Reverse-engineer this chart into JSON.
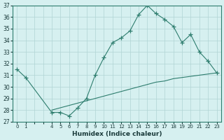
{
  "xlabel": "Humidex (Indice chaleur)",
  "upper_x": [
    0,
    1,
    4,
    5,
    6,
    7,
    8,
    9,
    10,
    11,
    12,
    13,
    14,
    15,
    16,
    17,
    18,
    19,
    20,
    21,
    22,
    23
  ],
  "upper_y": [
    31.5,
    30.8,
    27.8,
    27.8,
    27.5,
    28.2,
    29.0,
    31.0,
    32.5,
    33.8,
    34.2,
    34.8,
    36.2,
    37.0,
    36.3,
    35.8,
    35.2,
    33.8,
    34.5,
    33.0,
    32.2,
    31.2
  ],
  "lower_x": [
    4,
    5,
    6,
    7,
    8,
    9,
    10,
    11,
    12,
    13,
    14,
    15,
    16,
    17,
    18,
    19,
    20,
    21,
    22,
    23
  ],
  "lower_y": [
    28.0,
    28.2,
    28.4,
    28.6,
    28.8,
    29.0,
    29.2,
    29.4,
    29.6,
    29.8,
    30.0,
    30.2,
    30.4,
    30.5,
    30.7,
    30.8,
    30.9,
    31.0,
    31.1,
    31.2
  ],
  "line_color": "#2e7d6e",
  "bg_color": "#d6f0f0",
  "grid_color": "#b0d4d4",
  "ylim": [
    27,
    37
  ],
  "xlim": [
    -0.5,
    23.5
  ],
  "yticks": [
    27,
    28,
    29,
    30,
    31,
    32,
    33,
    34,
    35,
    36,
    37
  ],
  "xticks": [
    0,
    1,
    2,
    3,
    4,
    5,
    6,
    7,
    8,
    9,
    10,
    11,
    12,
    13,
    14,
    15,
    16,
    17,
    18,
    19,
    20,
    21,
    22,
    23
  ],
  "xtick_labels": [
    "0",
    "1",
    "",
    "",
    "4",
    "5",
    "6",
    "7",
    "8",
    "9",
    "10",
    "11",
    "12",
    "13",
    "14",
    "15",
    "16",
    "17",
    "18",
    "19",
    "20",
    "21",
    "22",
    "23"
  ],
  "marker": "+"
}
